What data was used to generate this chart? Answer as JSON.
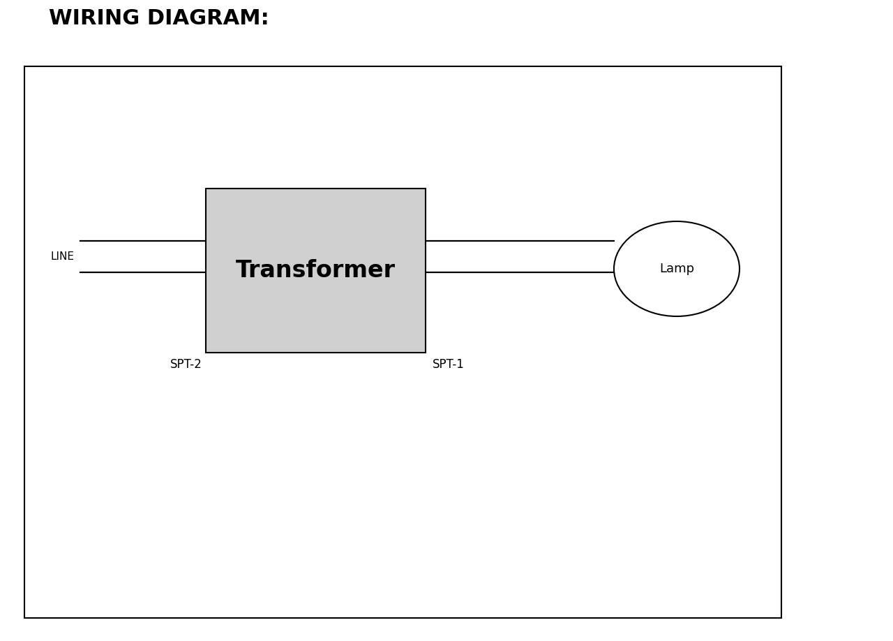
{
  "title": "WIRING DIAGRAM:",
  "title_fontsize": 22,
  "title_fontweight": "bold",
  "background_color": "#ffffff",
  "border_color": "#000000",
  "transformer_label": "Transformer",
  "transformer_fontsize": 24,
  "transformer_fontweight": "bold",
  "transformer_box_color": "#d0d0d0",
  "lamp_label": "Lamp",
  "lamp_fontsize": 13,
  "line_label": "LINE",
  "line_label_fontsize": 11,
  "spt2_label": "SPT-2",
  "spt2_fontsize": 12,
  "spt1_label": "SPT-1",
  "spt1_fontsize": 12,
  "wire_color": "#000000",
  "wire_lw": 1.6
}
